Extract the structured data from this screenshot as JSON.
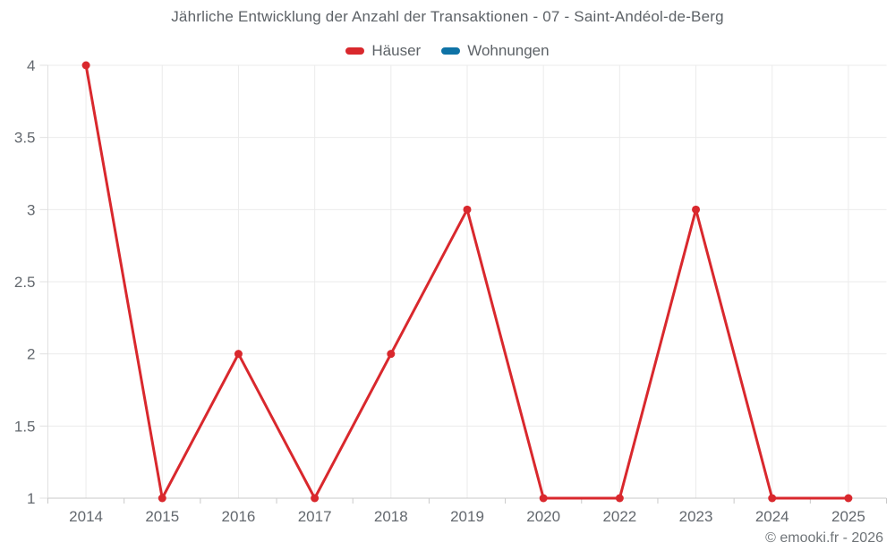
{
  "page": {
    "watermark": "© emooki.fr - 2026"
  },
  "chart_data": {
    "type": "line",
    "title": "Jährliche Entwicklung der Anzahl der Transaktionen - 07 - Saint-Andéol-de-Berg",
    "categories": [
      "2014",
      "2015",
      "2016",
      "2017",
      "2018",
      "2019",
      "2020",
      "2022",
      "2023",
      "2024",
      "2025"
    ],
    "series": [
      {
        "name": "Häuser",
        "color": "#d9282d",
        "values": [
          4,
          1,
          2,
          1,
          2,
          3,
          1,
          1,
          3,
          1,
          1
        ]
      },
      {
        "name": "Wohnungen",
        "color": "#0f73a6",
        "values": []
      }
    ],
    "yticks": [
      1,
      1.5,
      2,
      2.5,
      3,
      3.5,
      4
    ],
    "ylim": [
      1,
      4
    ],
    "xlabel": "",
    "ylabel": "",
    "legend_position": "top",
    "grid": true,
    "colors": {
      "gridline": "#ebebeb",
      "y_axis_line": "#e0e0e0",
      "x_axis_line": "#c9c9c9",
      "axis_label_text": "#63686e",
      "title_text": "#5d6267",
      "watermark_text": "#6f7478",
      "background": "#ffffff"
    }
  }
}
